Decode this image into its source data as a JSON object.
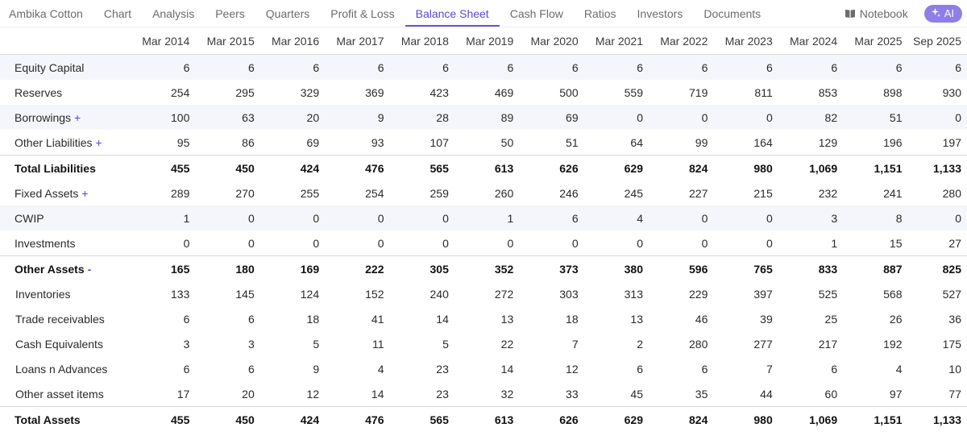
{
  "nav": {
    "tabs": [
      "Ambika Cotton",
      "Chart",
      "Analysis",
      "Peers",
      "Quarters",
      "Profit & Loss",
      "Balance Sheet",
      "Cash Flow",
      "Ratios",
      "Investors",
      "Documents"
    ],
    "active_index": 6,
    "notebook_label": "Notebook",
    "ai_label": "AI"
  },
  "table": {
    "columns": [
      "Mar 2014",
      "Mar 2015",
      "Mar 2016",
      "Mar 2017",
      "Mar 2018",
      "Mar 2019",
      "Mar 2020",
      "Mar 2021",
      "Mar 2022",
      "Mar 2023",
      "Mar 2024",
      "Mar 2025",
      "Sep 2025"
    ],
    "rows": [
      {
        "label": "Equity Capital",
        "marker": "",
        "values": [
          "6",
          "6",
          "6",
          "6",
          "6",
          "6",
          "6",
          "6",
          "6",
          "6",
          "6",
          "6",
          "6"
        ],
        "total": false,
        "alt": true,
        "sep": false,
        "sub": false
      },
      {
        "label": "Reserves",
        "marker": "",
        "values": [
          "254",
          "295",
          "329",
          "369",
          "423",
          "469",
          "500",
          "559",
          "719",
          "811",
          "853",
          "898",
          "930"
        ],
        "total": false,
        "alt": false,
        "sep": false,
        "sub": false
      },
      {
        "label": "Borrowings",
        "marker": "+",
        "values": [
          "100",
          "63",
          "20",
          "9",
          "28",
          "89",
          "69",
          "0",
          "0",
          "0",
          "82",
          "51",
          "0"
        ],
        "total": false,
        "alt": true,
        "sep": false,
        "sub": false
      },
      {
        "label": "Other Liabilities",
        "marker": "+",
        "values": [
          "95",
          "86",
          "69",
          "93",
          "107",
          "50",
          "51",
          "64",
          "99",
          "164",
          "129",
          "196",
          "197"
        ],
        "total": false,
        "alt": false,
        "sep": false,
        "sub": false
      },
      {
        "label": "Total Liabilities",
        "marker": "",
        "values": [
          "455",
          "450",
          "424",
          "476",
          "565",
          "613",
          "626",
          "629",
          "824",
          "980",
          "1,069",
          "1,151",
          "1,133"
        ],
        "total": true,
        "alt": false,
        "sep": true,
        "sub": false
      },
      {
        "label": "Fixed Assets",
        "marker": "+",
        "values": [
          "289",
          "270",
          "255",
          "254",
          "259",
          "260",
          "246",
          "245",
          "227",
          "215",
          "232",
          "241",
          "280"
        ],
        "total": false,
        "alt": false,
        "sep": false,
        "sub": false
      },
      {
        "label": "CWIP",
        "marker": "",
        "values": [
          "1",
          "0",
          "0",
          "0",
          "0",
          "1",
          "6",
          "4",
          "0",
          "0",
          "3",
          "8",
          "0"
        ],
        "total": false,
        "alt": true,
        "sep": false,
        "sub": false
      },
      {
        "label": "Investments",
        "marker": "",
        "values": [
          "0",
          "0",
          "0",
          "0",
          "0",
          "0",
          "0",
          "0",
          "0",
          "0",
          "1",
          "15",
          "27"
        ],
        "total": false,
        "alt": false,
        "sep": false,
        "sub": false
      },
      {
        "label": "Other Assets",
        "marker": "-",
        "values": [
          "165",
          "180",
          "169",
          "222",
          "305",
          "352",
          "373",
          "380",
          "596",
          "765",
          "833",
          "887",
          "825"
        ],
        "total": true,
        "alt": false,
        "sep": true,
        "sub": false
      },
      {
        "label": "Inventories",
        "marker": "",
        "values": [
          "133",
          "145",
          "124",
          "152",
          "240",
          "272",
          "303",
          "313",
          "229",
          "397",
          "525",
          "568",
          "527"
        ],
        "total": false,
        "alt": false,
        "sep": false,
        "sub": true
      },
      {
        "label": "Trade receivables",
        "marker": "",
        "values": [
          "6",
          "6",
          "18",
          "41",
          "14",
          "13",
          "18",
          "13",
          "46",
          "39",
          "25",
          "26",
          "36"
        ],
        "total": false,
        "alt": false,
        "sep": false,
        "sub": true
      },
      {
        "label": "Cash Equivalents",
        "marker": "",
        "values": [
          "3",
          "3",
          "5",
          "11",
          "5",
          "22",
          "7",
          "2",
          "280",
          "277",
          "217",
          "192",
          "175"
        ],
        "total": false,
        "alt": false,
        "sep": false,
        "sub": true
      },
      {
        "label": "Loans n Advances",
        "marker": "",
        "values": [
          "6",
          "6",
          "9",
          "4",
          "23",
          "14",
          "12",
          "6",
          "6",
          "7",
          "6",
          "4",
          "10"
        ],
        "total": false,
        "alt": false,
        "sep": false,
        "sub": true
      },
      {
        "label": "Other asset items",
        "marker": "",
        "values": [
          "17",
          "20",
          "12",
          "14",
          "23",
          "32",
          "33",
          "45",
          "35",
          "44",
          "60",
          "97",
          "77"
        ],
        "total": false,
        "alt": false,
        "sep": false,
        "sub": true
      },
      {
        "label": "Total Assets",
        "marker": "",
        "values": [
          "455",
          "450",
          "424",
          "476",
          "565",
          "613",
          "626",
          "629",
          "824",
          "980",
          "1,069",
          "1,151",
          "1,133"
        ],
        "total": true,
        "alt": false,
        "sep": true,
        "sub": false
      }
    ]
  }
}
